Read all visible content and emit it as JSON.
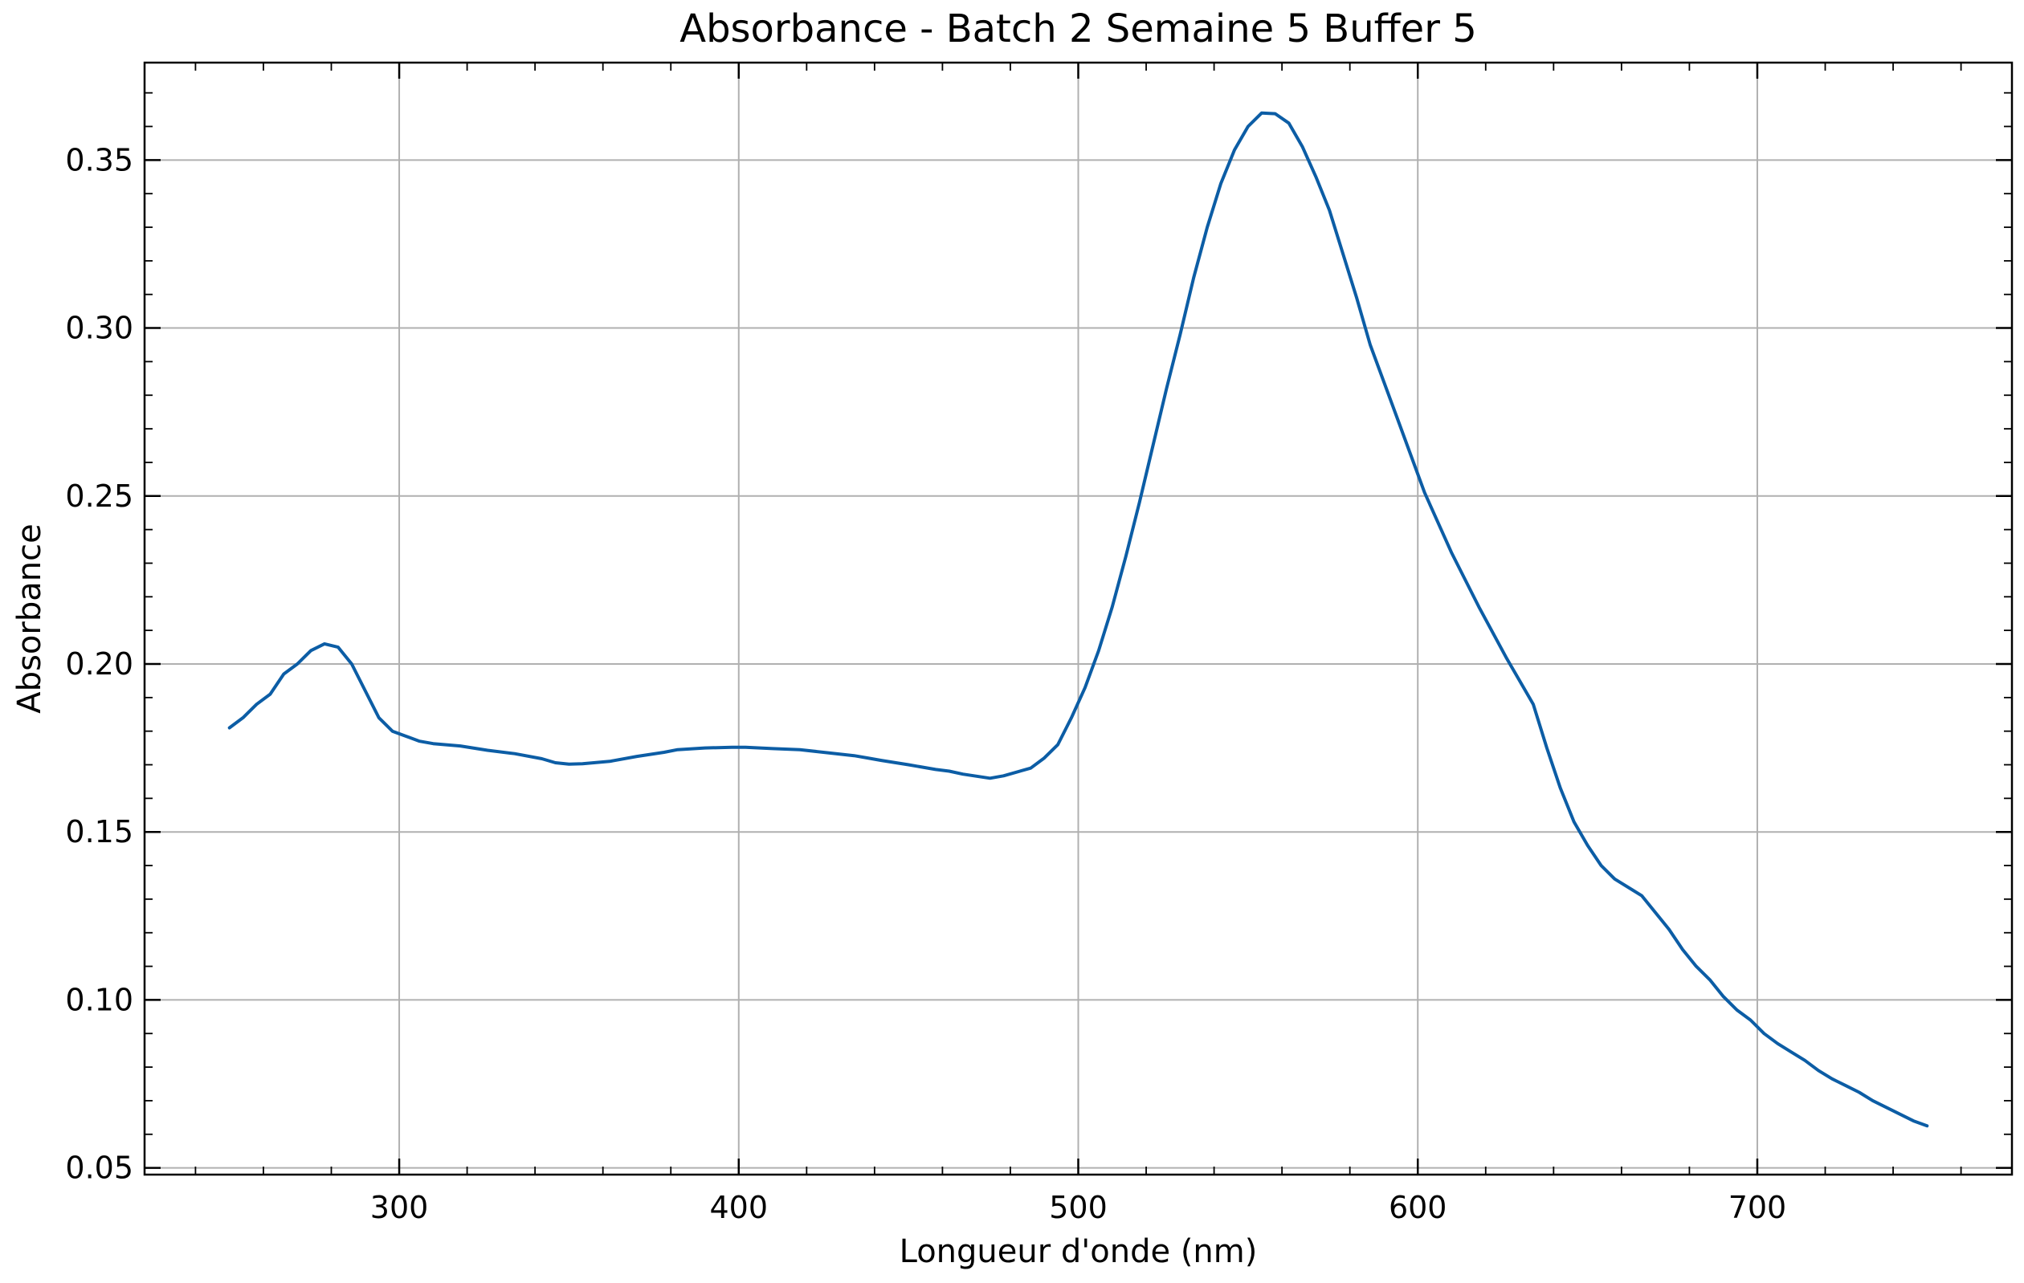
{
  "chart_data": {
    "type": "line",
    "title": "Absorbance - Batch 2 Semaine 5 Buffer 5",
    "xlabel": "Longueur d'onde (nm)",
    "ylabel": "Absorbance",
    "xlim": [
      225,
      775
    ],
    "ylim": [
      0.048,
      0.379
    ],
    "x_major_ticks": [
      300,
      400,
      500,
      600,
      700
    ],
    "x_minor_step": 20,
    "y_major_ticks": [
      0.05,
      0.1,
      0.15,
      0.2,
      0.25,
      0.3,
      0.35
    ],
    "y_minor_step": 0.01,
    "grid": true,
    "ticks_direction": "in",
    "series": [
      {
        "color": "#0c5da5",
        "x": [
          250,
          254,
          258,
          262,
          266,
          270,
          274,
          278,
          282,
          286,
          290,
          294,
          298,
          302,
          306,
          310,
          318,
          326,
          334,
          342,
          346,
          350,
          354,
          362,
          370,
          378,
          382,
          390,
          398,
          402,
          410,
          418,
          426,
          434,
          438,
          442,
          450,
          458,
          462,
          466,
          474,
          478,
          486,
          490,
          494,
          498,
          502,
          506,
          510,
          514,
          518,
          522,
          526,
          530,
          534,
          538,
          542,
          546,
          550,
          554,
          558,
          562,
          566,
          570,
          574,
          578,
          582,
          586,
          594,
          602,
          610,
          618,
          626,
          634,
          638,
          642,
          646,
          650,
          654,
          658,
          666,
          670,
          674,
          678,
          682,
          686,
          690,
          694,
          698,
          702,
          706,
          710,
          714,
          718,
          722,
          726,
          730,
          734,
          738,
          742,
          746,
          750
        ],
        "y": [
          0.181,
          0.184,
          0.188,
          0.191,
          0.197,
          0.2,
          0.204,
          0.206,
          0.205,
          0.2,
          0.192,
          0.184,
          0.18,
          0.1785,
          0.177,
          0.1763,
          0.1756,
          0.1743,
          0.1733,
          0.1718,
          0.1706,
          0.1702,
          0.1703,
          0.171,
          0.1725,
          0.1737,
          0.1745,
          0.175,
          0.1752,
          0.1752,
          0.1748,
          0.1745,
          0.1736,
          0.1727,
          0.172,
          0.1713,
          0.17,
          0.1686,
          0.1681,
          0.1672,
          0.166,
          0.1667,
          0.169,
          0.172,
          0.176,
          0.184,
          0.193,
          0.204,
          0.217,
          0.232,
          0.248,
          0.265,
          0.282,
          0.298,
          0.315,
          0.33,
          0.343,
          0.353,
          0.36,
          0.364,
          0.3638,
          0.361,
          0.354,
          0.345,
          0.335,
          0.322,
          0.309,
          0.295,
          0.273,
          0.251,
          0.233,
          0.217,
          0.202,
          0.188,
          0.175,
          0.163,
          0.153,
          0.146,
          0.14,
          0.136,
          0.131,
          0.126,
          0.121,
          0.115,
          0.11,
          0.106,
          0.101,
          0.097,
          0.094,
          0.09,
          0.087,
          0.0845,
          0.082,
          0.079,
          0.0765,
          0.0745,
          0.0725,
          0.07,
          0.068,
          0.066,
          0.064,
          0.0625
        ]
      }
    ]
  }
}
